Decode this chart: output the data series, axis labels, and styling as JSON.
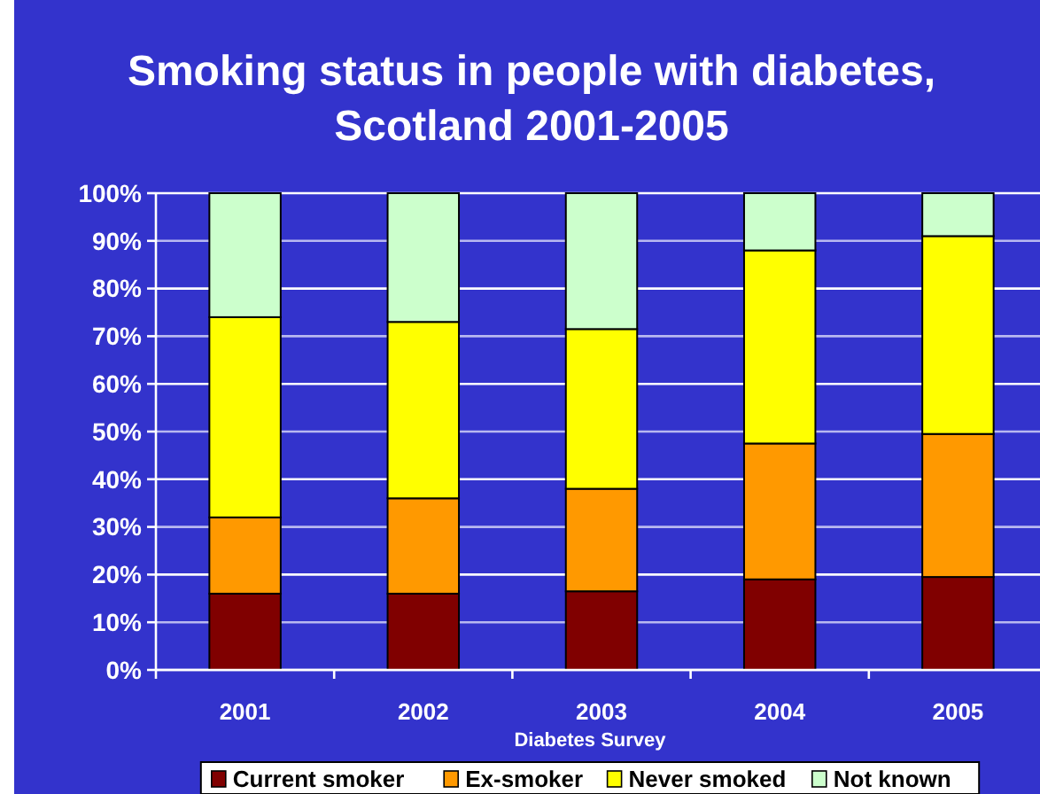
{
  "chart_data": {
    "type": "bar",
    "title": "Smoking status in people with diabetes,\nScotland 2001-2005",
    "xlabel": "Diabetes Survey",
    "categories": [
      "2001",
      "2002",
      "2003",
      "2004",
      "2005"
    ],
    "series": [
      {
        "name": "Current smoker",
        "color": "#800000",
        "values": [
          16,
          16,
          16.5,
          19,
          19.5
        ]
      },
      {
        "name": "Ex-smoker",
        "color": "#ff9900",
        "values": [
          16,
          20,
          21.5,
          28.5,
          30
        ]
      },
      {
        "name": "Never smoked",
        "color": "#ffff00",
        "values": [
          42,
          37,
          33.5,
          40.5,
          41.5
        ]
      },
      {
        "name": "Not known",
        "color": "#ccffcc",
        "values": [
          26,
          27,
          28.5,
          12,
          9
        ]
      }
    ],
    "stacked": true,
    "ylim": [
      0,
      100
    ],
    "yticks": [
      {
        "value": 0,
        "label": "0%"
      },
      {
        "value": 10,
        "label": "10%"
      },
      {
        "value": 20,
        "label": "20%"
      },
      {
        "value": 30,
        "label": "30%"
      },
      {
        "value": 40,
        "label": "40%"
      },
      {
        "value": 50,
        "label": "50%"
      },
      {
        "value": 60,
        "label": "60%"
      },
      {
        "value": 70,
        "label": "70%"
      },
      {
        "value": 80,
        "label": "80%"
      },
      {
        "value": 90,
        "label": "90%"
      },
      {
        "value": 100,
        "label": "100%"
      }
    ],
    "grid": "y",
    "legend": "bottom"
  }
}
